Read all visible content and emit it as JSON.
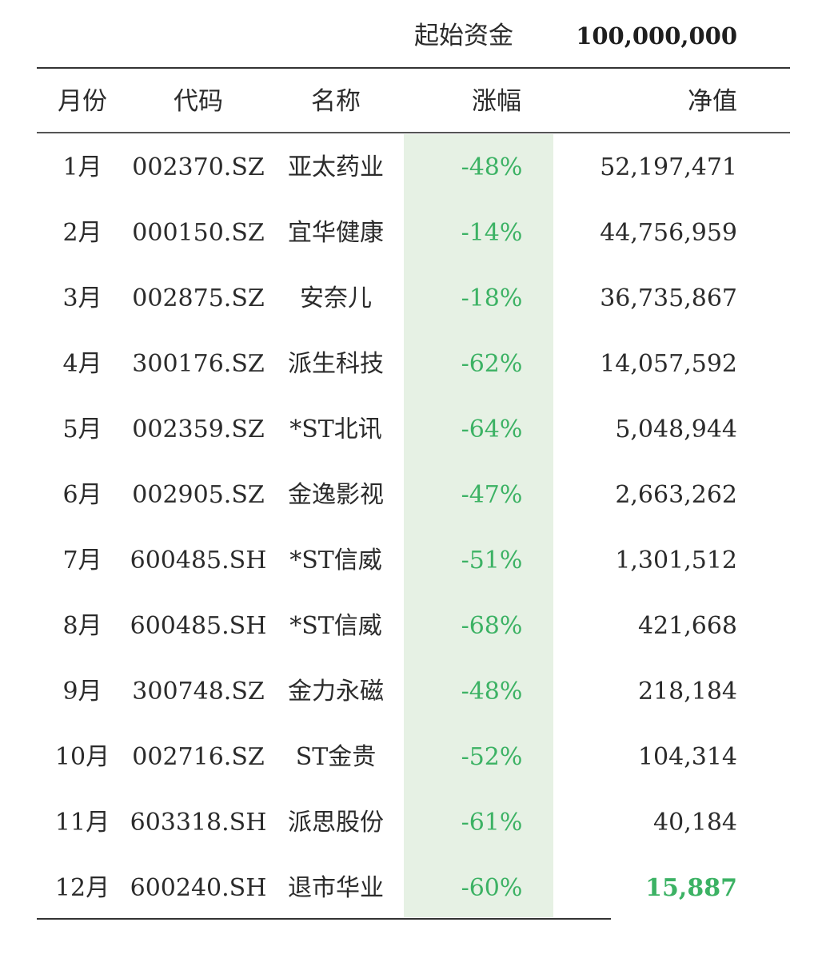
{
  "summary": {
    "label": "起始资金",
    "value": "100,000,000"
  },
  "headers": {
    "month": "月份",
    "code": "代码",
    "name": "名称",
    "change": "涨幅",
    "nav": "净值"
  },
  "rows": [
    {
      "month": "1月",
      "code": "002370.SZ",
      "name": "亚太药业",
      "change": "-48%",
      "nav": "52,197,471"
    },
    {
      "month": "2月",
      "code": "000150.SZ",
      "name": "宜华健康",
      "change": "-14%",
      "nav": "44,756,959"
    },
    {
      "month": "3月",
      "code": "002875.SZ",
      "name": "安奈儿",
      "change": "-18%",
      "nav": "36,735,867"
    },
    {
      "month": "4月",
      "code": "300176.SZ",
      "name": "派生科技",
      "change": "-62%",
      "nav": "14,057,592"
    },
    {
      "month": "5月",
      "code": "002359.SZ",
      "name": "*ST北讯",
      "change": "-64%",
      "nav": "5,048,944"
    },
    {
      "month": "6月",
      "code": "002905.SZ",
      "name": "金逸影视",
      "change": "-47%",
      "nav": "2,663,262"
    },
    {
      "month": "7月",
      "code": "600485.SH",
      "name": "*ST信威",
      "change": "-51%",
      "nav": "1,301,512"
    },
    {
      "month": "8月",
      "code": "600485.SH",
      "name": "*ST信威",
      "change": "-68%",
      "nav": "421,668"
    },
    {
      "month": "9月",
      "code": "300748.SZ",
      "name": "金力永磁",
      "change": "-48%",
      "nav": "218,184"
    },
    {
      "month": "10月",
      "code": "002716.SZ",
      "name": "ST金贵",
      "change": "-52%",
      "nav": "104,314"
    },
    {
      "month": "11月",
      "code": "603318.SH",
      "name": "派思股份",
      "change": "-61%",
      "nav": "40,184"
    },
    {
      "month": "12月",
      "code": "600240.SH",
      "name": "退市华业",
      "change": "-60%",
      "nav": "15,887"
    }
  ],
  "colors": {
    "change_text": "#3cb264",
    "change_column_bg": "#e6f1e4",
    "final_nav": "#3cb264"
  }
}
